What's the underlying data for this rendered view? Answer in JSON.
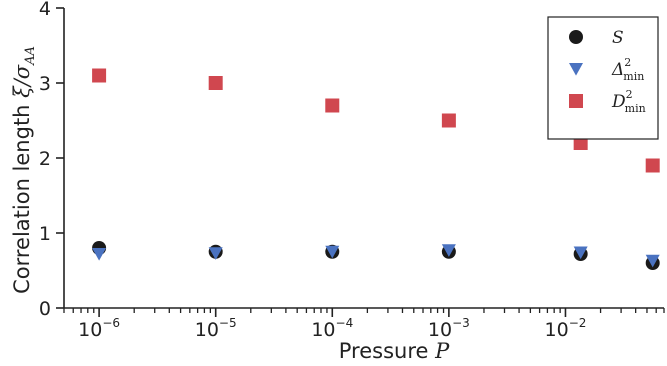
{
  "chart_data": {
    "type": "scatter",
    "xlabel": "Pressure",
    "xlabel_var": "P",
    "ylabel": "Correlation length",
    "ylabel_var": "ξ/σ",
    "ylabel_sub": "AA",
    "x_scale": "log",
    "xlim": [
      5e-07,
      0.07
    ],
    "ylim": [
      0,
      4
    ],
    "yticks": [
      0,
      1,
      2,
      3,
      4
    ],
    "xticks": [
      {
        "value": 1e-06,
        "base": "10",
        "exp": "−6"
      },
      {
        "value": 1e-05,
        "base": "10",
        "exp": "−5"
      },
      {
        "value": 0.0001,
        "base": "10",
        "exp": "−4"
      },
      {
        "value": 0.001,
        "base": "10",
        "exp": "−3"
      },
      {
        "value": 0.01,
        "base": "10",
        "exp": "−2"
      }
    ],
    "grid": false,
    "legend_position": "top-right",
    "series": [
      {
        "name": "S",
        "marker": "circle",
        "color": "#1a1a1a",
        "points": [
          [
            1e-06,
            0.8
          ],
          [
            1e-05,
            0.75
          ],
          [
            0.0001,
            0.75
          ],
          [
            0.001,
            0.75
          ],
          [
            0.0135,
            0.72
          ],
          [
            0.056,
            0.6
          ]
        ]
      },
      {
        "name": "Δ",
        "name_sup": "2",
        "name_sub": "min",
        "marker": "triangle-down",
        "color": "#4a72c0",
        "points": [
          [
            1e-06,
            0.72
          ],
          [
            1e-05,
            0.73
          ],
          [
            0.0001,
            0.75
          ],
          [
            0.001,
            0.77
          ],
          [
            0.0135,
            0.74
          ],
          [
            0.056,
            0.63
          ]
        ]
      },
      {
        "name": "D",
        "name_sup": "2",
        "name_sub": "min",
        "marker": "square",
        "color": "#d0474f",
        "points": [
          [
            1e-06,
            3.1
          ],
          [
            1e-05,
            3.0
          ],
          [
            0.0001,
            2.7
          ],
          [
            0.001,
            2.5
          ],
          [
            0.0135,
            2.2
          ],
          [
            0.056,
            1.9
          ]
        ]
      }
    ]
  }
}
